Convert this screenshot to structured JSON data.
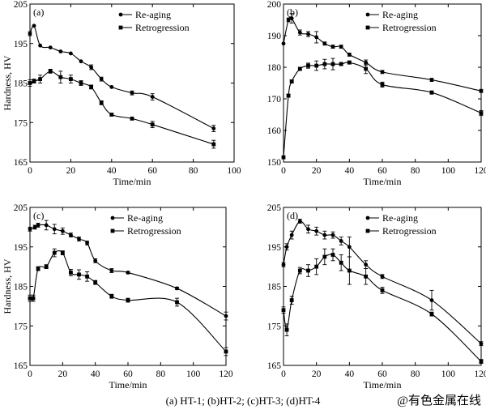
{
  "caption": "(a) HT-1; (b)HT-2; (c)HT-3; (d)HT-4",
  "watermark": "@有色金属在线",
  "chart_data": [
    {
      "type": "line",
      "panel": "(a)",
      "xlabel": "Time/min",
      "ylabel": "Hardness, HV",
      "xlim": [
        0,
        100
      ],
      "ylim": [
        165,
        205
      ],
      "xticks": [
        0,
        20,
        40,
        60,
        80,
        100
      ],
      "yticks": [
        165,
        175,
        185,
        195,
        205
      ],
      "legend_position": "top-right",
      "series": [
        {
          "name": "Re-aging",
          "marker": "circle",
          "x": [
            0,
            2,
            5,
            10,
            15,
            20,
            25,
            30,
            35,
            40,
            50,
            60,
            90
          ],
          "y": [
            197.5,
            199.5,
            194.5,
            194,
            193,
            192.5,
            190.5,
            189,
            186,
            184,
            182.5,
            181.5,
            173.5
          ],
          "err": [
            0.5,
            0,
            0,
            0,
            0,
            0,
            0,
            0.6,
            0.5,
            0,
            0.5,
            0.8,
            0.8
          ]
        },
        {
          "name": "Retrogression",
          "marker": "square",
          "x": [
            0,
            2,
            5,
            10,
            15,
            20,
            25,
            30,
            35,
            40,
            50,
            60,
            90
          ],
          "y": [
            185,
            185.5,
            186,
            188,
            186.5,
            186,
            185,
            184,
            180,
            177,
            176,
            174.5,
            169.5
          ],
          "err": [
            0.8,
            0.5,
            1,
            0.5,
            1.5,
            1,
            0.6,
            0.5,
            0.5,
            0.3,
            0,
            0.8,
            1
          ]
        }
      ]
    },
    {
      "type": "line",
      "panel": "(b)",
      "xlabel": "Time/min",
      "ylabel": "",
      "xlim": [
        0,
        120
      ],
      "ylim": [
        150,
        200
      ],
      "xticks": [
        0,
        20,
        40,
        60,
        80,
        100,
        120
      ],
      "yticks": [
        150,
        160,
        170,
        180,
        190,
        200
      ],
      "legend_position": "top-right",
      "series": [
        {
          "name": "Re-aging",
          "marker": "circle",
          "x": [
            0,
            3,
            5,
            10,
            15,
            20,
            25,
            30,
            35,
            40,
            50,
            60,
            90,
            120
          ],
          "y": [
            187.5,
            195,
            195.5,
            191,
            190.5,
            189.5,
            187.5,
            186.5,
            186.5,
            184,
            181.5,
            178.5,
            176,
            172.5
          ],
          "err": [
            0,
            0.6,
            1.5,
            0.8,
            0.8,
            1.8,
            0.5,
            0.5,
            0.5,
            0.5,
            0.8,
            0.5,
            0.5,
            0.5
          ]
        },
        {
          "name": "Retrogression",
          "marker": "square",
          "x": [
            0,
            3,
            5,
            10,
            15,
            20,
            25,
            30,
            35,
            40,
            50,
            60,
            90,
            120
          ],
          "y": [
            151.5,
            171,
            175.5,
            179.5,
            180.5,
            180.5,
            181,
            181,
            181,
            181.5,
            179.5,
            174.5,
            172,
            165.5
          ],
          "err": [
            0,
            0.5,
            0.5,
            0.5,
            0.8,
            1.5,
            1.5,
            1.8,
            0.5,
            0.5,
            1.5,
            0.8,
            0.5,
            0.8
          ]
        }
      ]
    },
    {
      "type": "line",
      "panel": "(c)",
      "xlabel": "Time/min",
      "ylabel": "Hardness, HV",
      "xlim": [
        0,
        120
      ],
      "ylim": [
        165,
        205
      ],
      "xticks": [
        0,
        20,
        40,
        60,
        80,
        100,
        120
      ],
      "yticks": [
        165,
        175,
        185,
        195,
        205
      ],
      "legend_position": "top-right",
      "series": [
        {
          "name": "Re-aging",
          "marker": "circle",
          "x": [
            0,
            3,
            5,
            10,
            15,
            20,
            25,
            30,
            35,
            40,
            50,
            60,
            90,
            120
          ],
          "y": [
            199.5,
            200,
            200.5,
            200.5,
            199.5,
            199,
            198,
            197,
            196,
            191.5,
            189,
            188.5,
            184.5,
            177.5
          ],
          "err": [
            0.5,
            0.5,
            0.5,
            1.2,
            1.2,
            0.8,
            0.5,
            0.5,
            0.5,
            0.5,
            0.5,
            0.3,
            0.3,
            1
          ]
        },
        {
          "name": "Retrogression",
          "marker": "square",
          "x": [
            0,
            2,
            5,
            10,
            15,
            20,
            25,
            30,
            35,
            40,
            50,
            60,
            90,
            120
          ],
          "y": [
            182,
            182,
            189.5,
            190,
            193.5,
            193.5,
            188.5,
            188,
            187.5,
            186,
            182.5,
            181.5,
            181,
            168.5
          ],
          "err": [
            0.8,
            0.8,
            0.5,
            0.5,
            1,
            0.5,
            0.8,
            1.2,
            1.2,
            0.5,
            0.5,
            0.5,
            1,
            1
          ]
        }
      ]
    },
    {
      "type": "line",
      "panel": "(d)",
      "xlabel": "Time/min",
      "ylabel": "",
      "xlim": [
        0,
        120
      ],
      "ylim": [
        165,
        205
      ],
      "xticks": [
        0,
        20,
        40,
        60,
        80,
        100,
        120
      ],
      "yticks": [
        165,
        175,
        185,
        195,
        205
      ],
      "legend_position": "top-right",
      "series": [
        {
          "name": "Re-aging",
          "marker": "circle",
          "x": [
            0,
            2,
            5,
            10,
            15,
            20,
            25,
            30,
            35,
            40,
            50,
            60,
            90,
            120
          ],
          "y": [
            190.5,
            195,
            198,
            201.5,
            199.5,
            199,
            198,
            198,
            196.5,
            195,
            190.5,
            187.5,
            181.5,
            170.5
          ],
          "err": [
            0.5,
            0.8,
            1,
            0.5,
            1,
            1,
            1,
            0.8,
            1,
            2.5,
            1,
            0.5,
            2.5,
            0.5
          ]
        },
        {
          "name": "Retrogression",
          "marker": "square",
          "x": [
            0,
            2,
            5,
            10,
            15,
            20,
            25,
            30,
            35,
            40,
            50,
            60,
            90,
            120
          ],
          "y": [
            179,
            174,
            181.5,
            189,
            189,
            190,
            192.5,
            193,
            191,
            189,
            187.5,
            184,
            178,
            166
          ],
          "err": [
            0.8,
            1.5,
            1,
            0.8,
            1.5,
            2,
            2,
            1.5,
            2,
            3.5,
            2,
            0.8,
            0.5,
            0.5
          ]
        }
      ]
    }
  ]
}
